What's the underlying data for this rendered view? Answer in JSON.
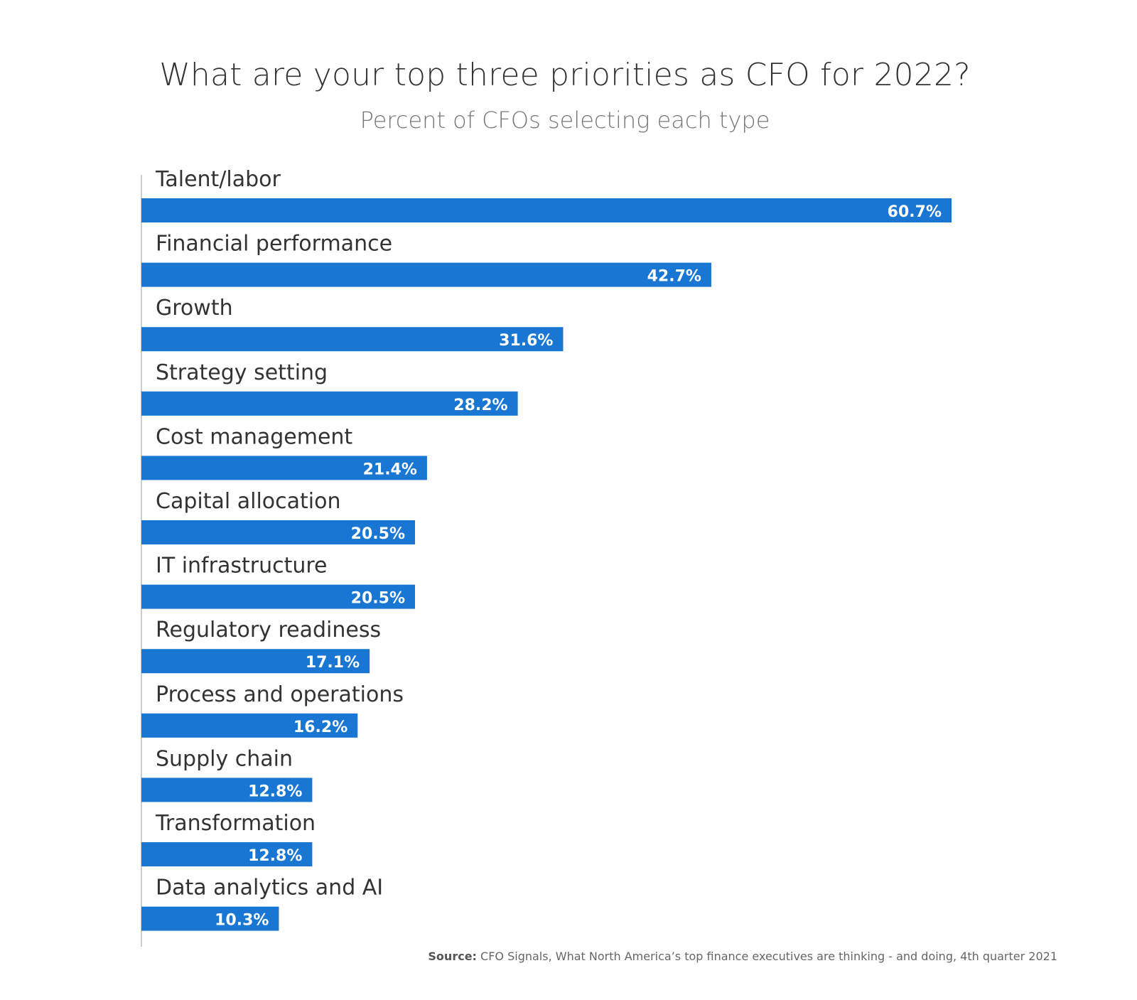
{
  "chart_data": {
    "type": "bar",
    "orientation": "horizontal",
    "title": "What are your top three priorities as CFO for 2022?",
    "subtitle": "Percent of CFOs selecting each type",
    "categories": [
      "Talent/labor",
      "Financial performance",
      "Growth",
      "Strategy setting",
      "Cost management",
      "Capital allocation",
      "IT infrastructure",
      "Regulatory readiness",
      "Process and operations",
      "Supply chain",
      "Transformation",
      "Data analytics and AI"
    ],
    "values": [
      60.7,
      42.7,
      31.6,
      28.2,
      21.4,
      20.5,
      20.5,
      17.1,
      16.2,
      12.8,
      12.8,
      10.3
    ],
    "value_labels": [
      "60.7%",
      "42.7%",
      "31.6%",
      "28.2%",
      "21.4%",
      "20.5%",
      "20.5%",
      "17.1%",
      "16.2%",
      "12.8%",
      "12.8%",
      "10.3%"
    ],
    "unit": "%",
    "xlim": [
      0,
      70
    ],
    "xlabel": "",
    "ylabel": "",
    "grid": false,
    "bar_color": "#1976d2",
    "label_color": "#ffffff"
  },
  "source": {
    "label": "Source:",
    "text": "CFO Signals, What North America’s top finance executives are thinking - and doing, 4th quarter 2021"
  }
}
